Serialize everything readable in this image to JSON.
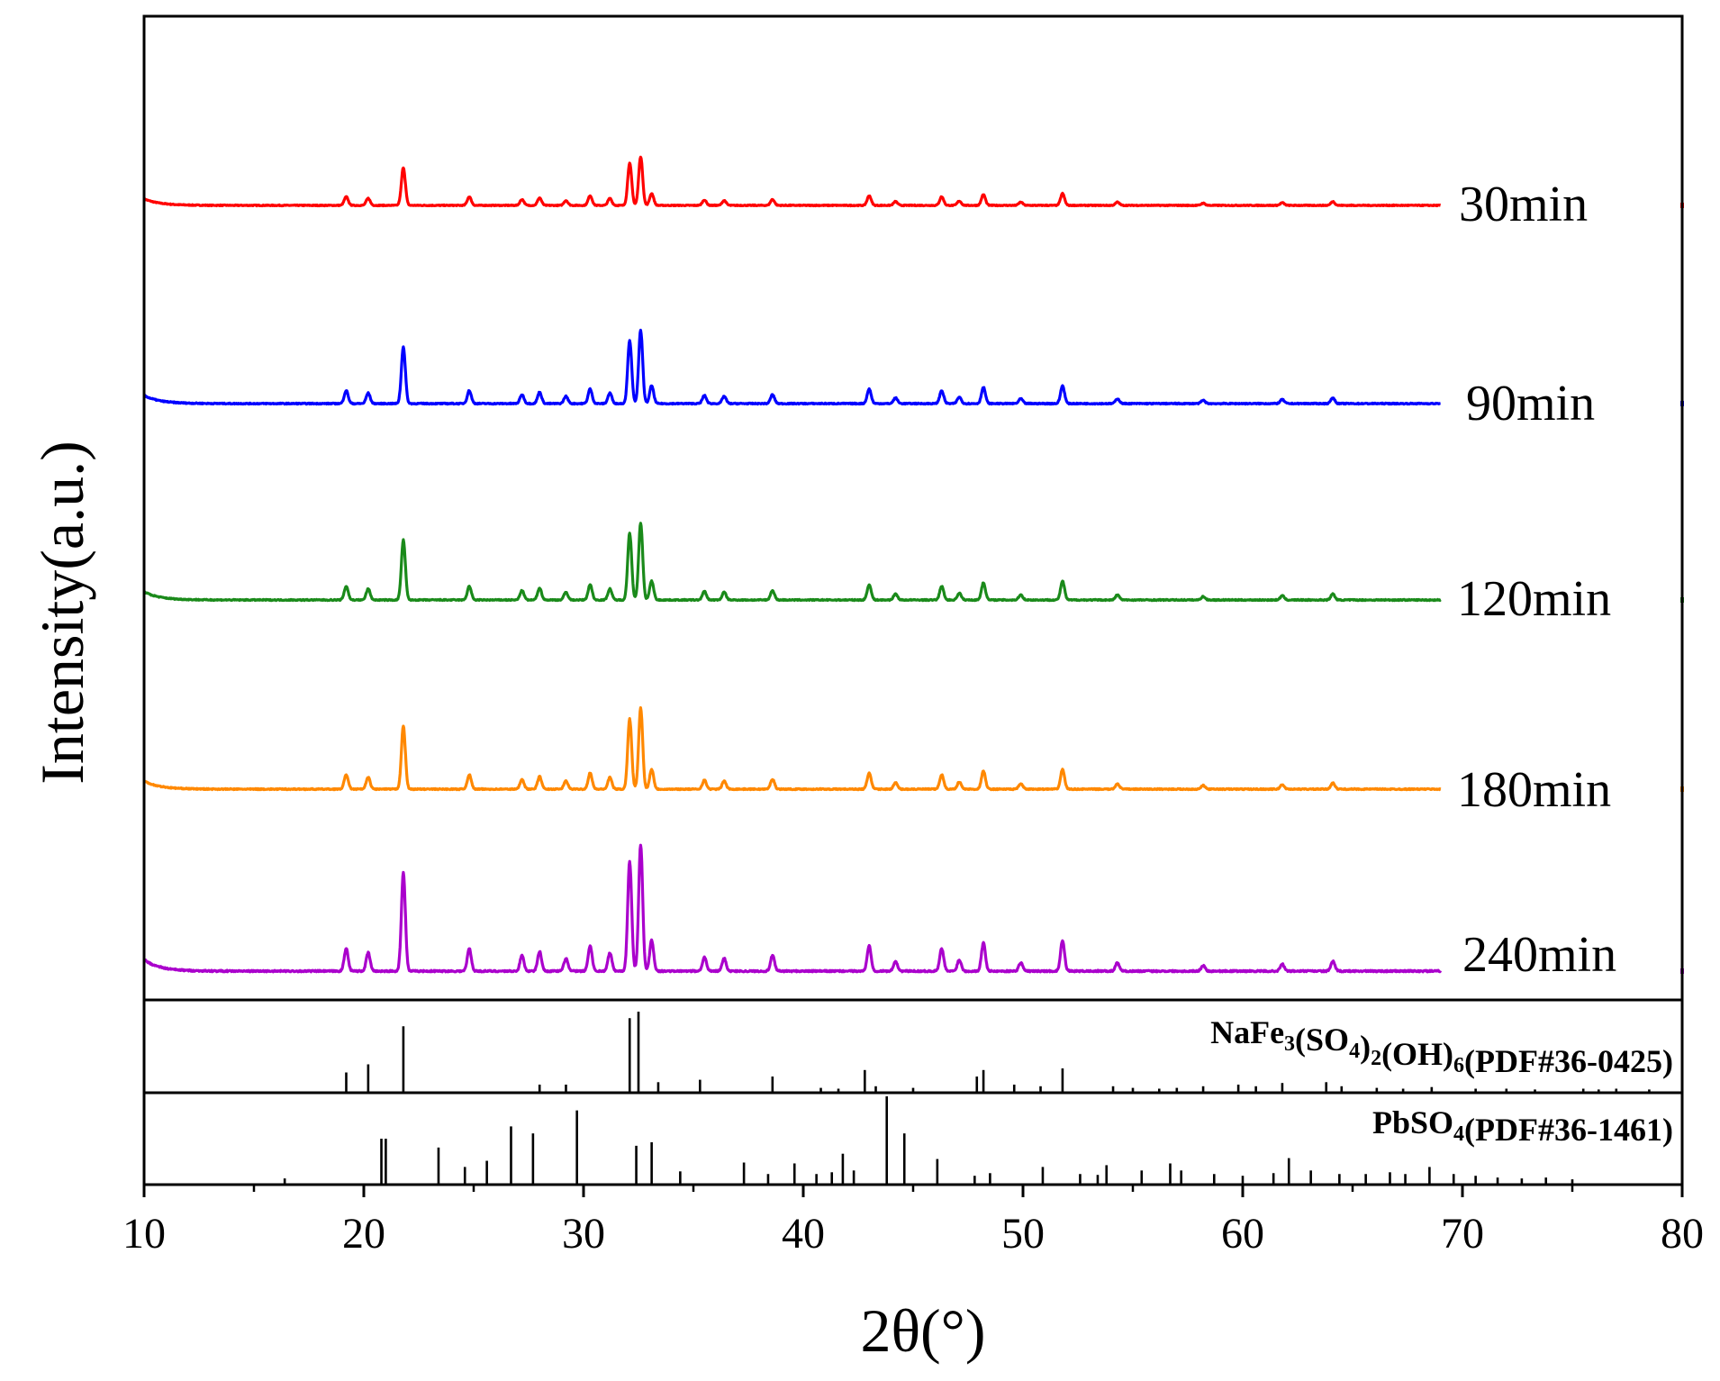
{
  "chart_data": {
    "type": "line",
    "xlabel": "2θ(°)",
    "ylabel": "Intensity(a.u.)",
    "xlim": [
      10,
      80
    ],
    "xticks": [
      10,
      20,
      30,
      40,
      50,
      60,
      70,
      80
    ],
    "x_range_measured": [
      10,
      69
    ],
    "common_peaks": [
      {
        "x": 19.2,
        "h": 0.16
      },
      {
        "x": 20.2,
        "h": 0.13
      },
      {
        "x": 21.8,
        "h": 0.7
      },
      {
        "x": 24.8,
        "h": 0.16
      },
      {
        "x": 27.2,
        "h": 0.11
      },
      {
        "x": 28.0,
        "h": 0.14
      },
      {
        "x": 29.2,
        "h": 0.09
      },
      {
        "x": 30.3,
        "h": 0.18
      },
      {
        "x": 31.2,
        "h": 0.13
      },
      {
        "x": 32.1,
        "h": 0.78
      },
      {
        "x": 32.6,
        "h": 0.9
      },
      {
        "x": 33.1,
        "h": 0.22
      },
      {
        "x": 35.5,
        "h": 0.1
      },
      {
        "x": 36.4,
        "h": 0.09
      },
      {
        "x": 38.6,
        "h": 0.11
      },
      {
        "x": 43.0,
        "h": 0.18
      },
      {
        "x": 44.2,
        "h": 0.07
      },
      {
        "x": 46.3,
        "h": 0.16
      },
      {
        "x": 47.1,
        "h": 0.08
      },
      {
        "x": 48.2,
        "h": 0.2
      },
      {
        "x": 49.9,
        "h": 0.06
      },
      {
        "x": 51.8,
        "h": 0.22
      },
      {
        "x": 54.3,
        "h": 0.06
      },
      {
        "x": 58.2,
        "h": 0.04
      },
      {
        "x": 61.8,
        "h": 0.05
      },
      {
        "x": 64.1,
        "h": 0.07
      }
    ],
    "series": [
      {
        "name": "30min",
        "label": "30min",
        "color": "#ff0000",
        "height_scale": 0.75
      },
      {
        "name": "90min",
        "label": "90min",
        "color": "#0000ff",
        "height_scale": 0.9
      },
      {
        "name": "120min",
        "label": "120min",
        "color": "#1a8a1a",
        "height_scale": 0.95
      },
      {
        "name": "180min",
        "label": "180min",
        "color": "#ff8800",
        "height_scale": 1.0
      },
      {
        "name": "240min",
        "label": "240min",
        "color": "#aa00cc",
        "height_scale": 1.1
      }
    ],
    "references": [
      {
        "name": "NaFe3(SO4)2(OH)6",
        "pdf": "(PDF#36-0425)",
        "label_parts": [
          {
            "t": "NaFe",
            "sub": false
          },
          {
            "t": "3",
            "sub": true
          },
          {
            "t": "(SO",
            "sub": false
          },
          {
            "t": "4",
            "sub": true
          },
          {
            "t": ")",
            "sub": false
          },
          {
            "t": "2",
            "sub": true
          },
          {
            "t": "(OH)",
            "sub": false
          },
          {
            "t": "6",
            "sub": true
          },
          {
            "t": "(PDF#36-0425)",
            "sub": false
          }
        ],
        "sticks": [
          {
            "x": 19.2,
            "h": 0.25
          },
          {
            "x": 20.2,
            "h": 0.35
          },
          {
            "x": 21.8,
            "h": 0.82
          },
          {
            "x": 28.0,
            "h": 0.1
          },
          {
            "x": 29.2,
            "h": 0.1
          },
          {
            "x": 32.1,
            "h": 0.92
          },
          {
            "x": 32.5,
            "h": 1.0
          },
          {
            "x": 33.4,
            "h": 0.13
          },
          {
            "x": 35.3,
            "h": 0.16
          },
          {
            "x": 38.6,
            "h": 0.2
          },
          {
            "x": 40.8,
            "h": 0.06
          },
          {
            "x": 41.6,
            "h": 0.05
          },
          {
            "x": 42.8,
            "h": 0.28
          },
          {
            "x": 43.3,
            "h": 0.08
          },
          {
            "x": 45.0,
            "h": 0.06
          },
          {
            "x": 47.9,
            "h": 0.2
          },
          {
            "x": 48.2,
            "h": 0.28
          },
          {
            "x": 49.6,
            "h": 0.1
          },
          {
            "x": 50.8,
            "h": 0.08
          },
          {
            "x": 51.8,
            "h": 0.3
          },
          {
            "x": 54.1,
            "h": 0.08
          },
          {
            "x": 55.0,
            "h": 0.06
          },
          {
            "x": 56.2,
            "h": 0.05
          },
          {
            "x": 57.0,
            "h": 0.06
          },
          {
            "x": 58.2,
            "h": 0.08
          },
          {
            "x": 59.8,
            "h": 0.1
          },
          {
            "x": 60.6,
            "h": 0.08
          },
          {
            "x": 61.8,
            "h": 0.12
          },
          {
            "x": 63.8,
            "h": 0.13
          },
          {
            "x": 64.5,
            "h": 0.08
          },
          {
            "x": 66.1,
            "h": 0.06
          },
          {
            "x": 67.3,
            "h": 0.05
          },
          {
            "x": 68.6,
            "h": 0.07
          },
          {
            "x": 70.6,
            "h": 0.05
          },
          {
            "x": 72.0,
            "h": 0.05
          },
          {
            "x": 73.3,
            "h": 0.04
          },
          {
            "x": 75.5,
            "h": 0.05
          },
          {
            "x": 76.2,
            "h": 0.04
          },
          {
            "x": 77.0,
            "h": 0.05
          },
          {
            "x": 78.5,
            "h": 0.04
          }
        ]
      },
      {
        "name": "PbSO4",
        "pdf": "(PDF#36-1461)",
        "label_parts": [
          {
            "t": "PbSO",
            "sub": false
          },
          {
            "t": "4",
            "sub": true
          },
          {
            "t": "(PDF#36-1461)",
            "sub": false
          }
        ],
        "sticks": [
          {
            "x": 16.4,
            "h": 0.07
          },
          {
            "x": 20.8,
            "h": 0.52
          },
          {
            "x": 21.0,
            "h": 0.52
          },
          {
            "x": 23.4,
            "h": 0.42
          },
          {
            "x": 24.6,
            "h": 0.2
          },
          {
            "x": 25.6,
            "h": 0.27
          },
          {
            "x": 26.7,
            "h": 0.66
          },
          {
            "x": 27.7,
            "h": 0.58
          },
          {
            "x": 29.7,
            "h": 0.84
          },
          {
            "x": 32.4,
            "h": 0.44
          },
          {
            "x": 33.1,
            "h": 0.48
          },
          {
            "x": 34.4,
            "h": 0.15
          },
          {
            "x": 37.3,
            "h": 0.25
          },
          {
            "x": 38.4,
            "h": 0.12
          },
          {
            "x": 39.6,
            "h": 0.24
          },
          {
            "x": 40.6,
            "h": 0.12
          },
          {
            "x": 41.3,
            "h": 0.14
          },
          {
            "x": 41.8,
            "h": 0.35
          },
          {
            "x": 42.3,
            "h": 0.16
          },
          {
            "x": 43.8,
            "h": 1.0
          },
          {
            "x": 44.6,
            "h": 0.58
          },
          {
            "x": 46.1,
            "h": 0.29
          },
          {
            "x": 47.8,
            "h": 0.1
          },
          {
            "x": 48.5,
            "h": 0.13
          },
          {
            "x": 50.9,
            "h": 0.2
          },
          {
            "x": 52.6,
            "h": 0.12
          },
          {
            "x": 53.4,
            "h": 0.11
          },
          {
            "x": 53.8,
            "h": 0.22
          },
          {
            "x": 55.4,
            "h": 0.16
          },
          {
            "x": 56.7,
            "h": 0.24
          },
          {
            "x": 57.2,
            "h": 0.16
          },
          {
            "x": 58.7,
            "h": 0.12
          },
          {
            "x": 60.0,
            "h": 0.1
          },
          {
            "x": 61.4,
            "h": 0.13
          },
          {
            "x": 62.1,
            "h": 0.3
          },
          {
            "x": 63.1,
            "h": 0.16
          },
          {
            "x": 64.4,
            "h": 0.12
          },
          {
            "x": 65.6,
            "h": 0.12
          },
          {
            "x": 66.7,
            "h": 0.14
          },
          {
            "x": 67.4,
            "h": 0.12
          },
          {
            "x": 68.5,
            "h": 0.2
          },
          {
            "x": 69.6,
            "h": 0.12
          },
          {
            "x": 70.6,
            "h": 0.1
          },
          {
            "x": 71.6,
            "h": 0.08
          },
          {
            "x": 72.7,
            "h": 0.07
          },
          {
            "x": 73.8,
            "h": 0.08
          },
          {
            "x": 75.0,
            "h": 0.06
          }
        ]
      }
    ]
  }
}
